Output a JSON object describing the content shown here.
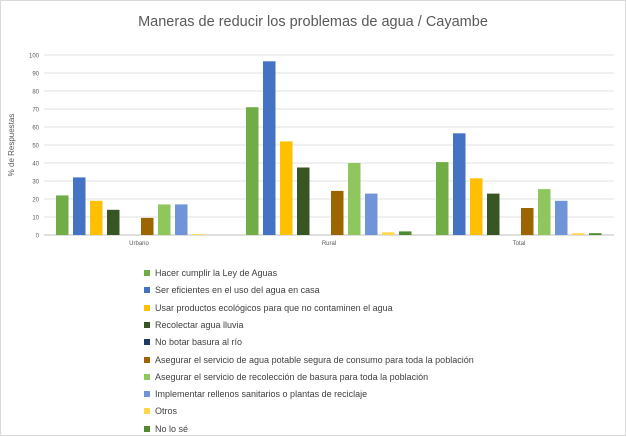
{
  "chart_data": {
    "type": "bar",
    "title": "Maneras de reducir los problemas de agua / Cayambe",
    "xlabel": "",
    "ylabel": "% de Respuestas",
    "ylim": [
      0,
      100
    ],
    "yticks": [
      "0",
      "10",
      "20",
      "30",
      "40",
      "50",
      "60",
      "70",
      "80",
      "90",
      "100"
    ],
    "grid": true,
    "legend_position": "bottom-left",
    "categories": [
      "Urbano",
      "Rural",
      "Total"
    ],
    "series": [
      {
        "name": "Hacer cumplir la Ley de Aguas",
        "color": "#70ad47",
        "values": [
          22,
          71,
          40.5
        ]
      },
      {
        "name": "Ser eficientes en el uso del agua en casa",
        "color": "#4472c4",
        "values": [
          32,
          96.5,
          56.5
        ]
      },
      {
        "name": "Usar productos ecológicos para que no contaminen el agua",
        "color": "#ffc000",
        "values": [
          19,
          52,
          31.5
        ]
      },
      {
        "name": "Recolectar agua lluvia",
        "color": "#375623",
        "values": [
          14,
          37.5,
          23
        ]
      },
      {
        "name": "No botar basura al río",
        "color": "#203864",
        "values": [
          0,
          0,
          0
        ]
      },
      {
        "name": "Asegurar el servicio de agua potable segura de consumo para toda la población",
        "color": "#9c6500",
        "values": [
          9.5,
          24.5,
          15
        ]
      },
      {
        "name": "Asegurar el servicio de recolección de basura para toda la población",
        "color": "#8fc75e",
        "values": [
          17,
          40,
          25.5
        ]
      },
      {
        "name": "Implementar rellenos sanitarios o plantas de reciclaje",
        "color": "#6f94d9",
        "values": [
          17,
          23,
          19
        ]
      },
      {
        "name": "Otros",
        "color": "#ffd74a",
        "values": [
          0.5,
          1.5,
          1
        ]
      },
      {
        "name": "No lo sé",
        "color": "#4f8a32",
        "values": [
          0,
          2,
          1
        ]
      }
    ]
  }
}
